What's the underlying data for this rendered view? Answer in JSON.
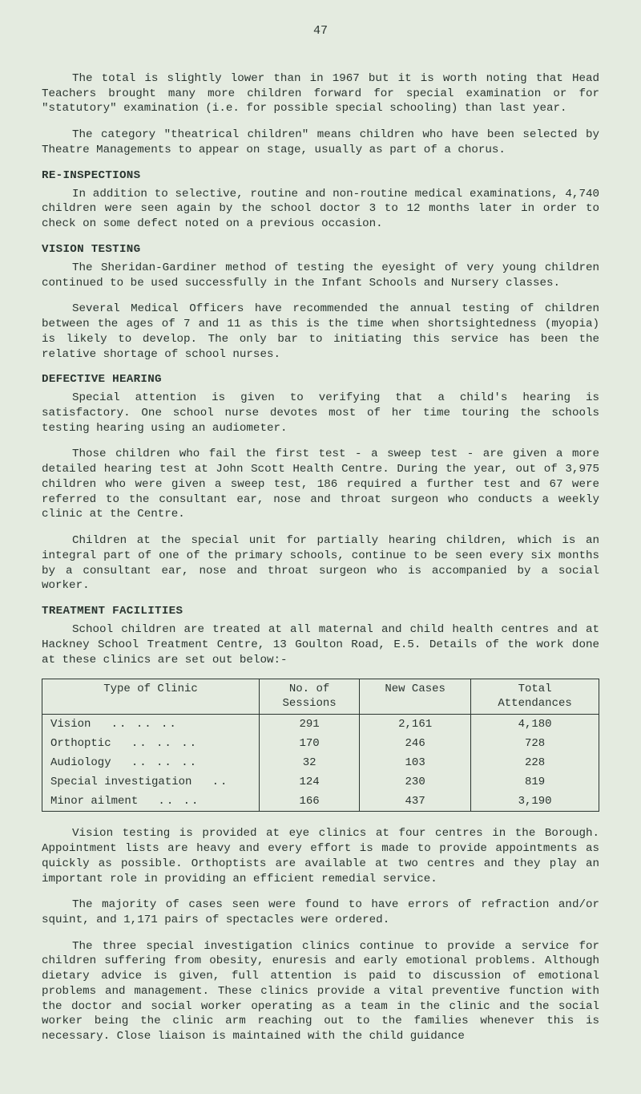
{
  "page_number": "47",
  "paragraphs": {
    "p1": "The total is slightly lower than in 1967 but it is worth noting that Head Teachers brought many more children forward for special examination or for \"statutory\" examination (i.e. for possible special schooling) than last year.",
    "p2": "The category \"theatrical children\" means children who have been selected by Theatre Managements to appear on stage, usually as part of a chorus.",
    "p3": "In addition to selective, routine and non-routine medical examinations, 4,740 children were seen again by the school doctor 3 to 12 months later in order to check on some defect noted on a previous occasion.",
    "p4": "The Sheridan-Gardiner method of testing the eyesight of very young children continued to be used successfully in the Infant Schools and Nursery classes.",
    "p5": "Several Medical Officers have recommended the annual testing of children between the ages of 7 and 11 as this is the time when shortsightedness (myopia) is likely to develop. The only bar to initiating this service has been the relative shortage of school nurses.",
    "p6": "Special attention is given to verifying that a child's hearing is satisfactory. One school nurse devotes most of her time touring the schools testing hearing using an audiometer.",
    "p7": "Those children who fail the first test - a sweep test - are given a more detailed hearing test at John Scott Health Centre. During the year, out of 3,975 children who were given a sweep test, 186 required a further test and 67 were referred to the consultant ear, nose and throat surgeon who conducts a weekly clinic at the Centre.",
    "p8": "Children at the special unit for partially hearing children, which is an integral part of one of the primary schools, continue to be seen every six months by a consultant ear, nose and throat surgeon who is accompanied by a social worker.",
    "p9": "School children are treated at all maternal and child health centres and at Hackney School Treatment Centre, 13 Goulton Road, E.5. Details of the work done at these clinics are set out below:-",
    "p10": "Vision testing is provided at eye clinics at four centres in the Borough. Appointment lists are heavy and every effort is made to provide appointments as quickly as possible. Orthoptists are available at two centres and they play an important role in providing an efficient remedial service.",
    "p11": "The majority of cases seen were found to have errors of refraction and/or squint, and 1,171 pairs of spectacles were ordered.",
    "p12": "The three special investigation clinics continue to provide a service for children suffering from obesity, enuresis and early emotional problems. Although dietary advice is given, full attention is paid to discussion of emotional problems and management. These clinics provide a vital preventive function with the doctor and social worker operating as a team in the clinic and the social worker being the clinic arm reaching out to the families whenever this is necessary. Close liaison is maintained with the child guidance"
  },
  "headings": {
    "h1": "RE-INSPECTIONS",
    "h2": "VISION TESTING",
    "h3": "DEFECTIVE HEARING",
    "h4": "TREATMENT FACILITIES"
  },
  "table": {
    "type": "table",
    "columns": [
      "Type of Clinic",
      "No. of Sessions",
      "New Cases",
      "Total Attendances"
    ],
    "col_widths": [
      "39%",
      "18%",
      "20%",
      "23%"
    ],
    "border_color": "#2a3530",
    "background_color": "#e4ebe0",
    "font_size": 14,
    "rows": [
      {
        "label": "Vision",
        "dots": ".. .. ..",
        "sessions": "291",
        "cases": "2,161",
        "attend": "4,180"
      },
      {
        "label": "Orthoptic",
        "dots": ".. .. ..",
        "sessions": "170",
        "cases": "246",
        "attend": "728"
      },
      {
        "label": "Audiology",
        "dots": ".. .. ..",
        "sessions": "32",
        "cases": "103",
        "attend": "228"
      },
      {
        "label": "Special investigation",
        "dots": "..",
        "sessions": "124",
        "cases": "230",
        "attend": "819"
      },
      {
        "label": "Minor ailment",
        "dots": ".. ..",
        "sessions": "166",
        "cases": "437",
        "attend": "3,190"
      }
    ]
  },
  "colors": {
    "background": "#e4ebe0",
    "text": "#2a3530"
  },
  "typography": {
    "body_fontsize": 14.2,
    "line_height": 1.32,
    "font_family": "Courier New"
  }
}
